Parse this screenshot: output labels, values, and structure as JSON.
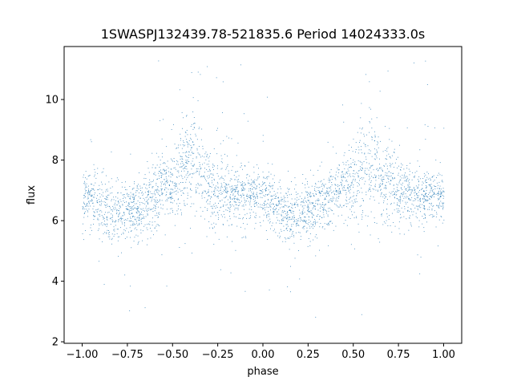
{
  "chart_data": {
    "type": "scatter",
    "title": "1SWASPJ132439.78-521835.6 Period 14024333.0s",
    "xlabel": "phase",
    "ylabel": "flux",
    "xlim": [
      -1.1,
      1.1
    ],
    "ylim": [
      1.95,
      11.75
    ],
    "x_ticks": [
      -1.0,
      -0.75,
      -0.5,
      -0.25,
      0.0,
      0.25,
      0.5,
      0.75,
      1.0
    ],
    "x_tick_labels": [
      "−1.00",
      "−0.75",
      "−0.50",
      "−0.25",
      "0.00",
      "0.25",
      "0.50",
      "0.75",
      "1.00"
    ],
    "y_ticks": [
      2,
      4,
      6,
      8,
      10
    ],
    "y_tick_labels": [
      "2",
      "4",
      "6",
      "8",
      "10"
    ],
    "grid": false,
    "marker_color": "#1f77b4",
    "series": [
      {
        "profile_phase": [
          -1.0,
          -0.95,
          -0.9,
          -0.85,
          -0.8,
          -0.75,
          -0.7,
          -0.65,
          -0.6,
          -0.55,
          -0.5,
          -0.45,
          -0.4,
          -0.35,
          -0.3,
          -0.25,
          -0.2,
          -0.15,
          -0.1,
          -0.05,
          0.0,
          0.05,
          0.1,
          0.15,
          0.2,
          0.25,
          0.3,
          0.35,
          0.4,
          0.45,
          0.5,
          0.55,
          0.6,
          0.65,
          0.7,
          0.75,
          0.8,
          0.85,
          0.9,
          0.95,
          1.0
        ],
        "profile_flux": [
          6.8,
          6.7,
          6.5,
          6.3,
          6.2,
          6.3,
          6.3,
          6.6,
          6.9,
          7.2,
          7.3,
          7.7,
          8.0,
          7.6,
          7.2,
          7.0,
          6.9,
          6.8,
          6.9,
          6.9,
          6.8,
          6.6,
          6.4,
          6.2,
          6.2,
          6.3,
          6.4,
          6.6,
          6.9,
          7.2,
          7.3,
          7.7,
          8.0,
          7.6,
          7.2,
          7.0,
          6.9,
          6.8,
          6.9,
          6.9,
          6.8
        ],
        "profile_spread": [
          0.5,
          0.5,
          0.55,
          0.6,
          0.6,
          0.6,
          0.6,
          0.6,
          0.65,
          0.7,
          0.75,
          0.9,
          1.0,
          0.9,
          0.8,
          0.7,
          0.6,
          0.55,
          0.55,
          0.5,
          0.5,
          0.5,
          0.55,
          0.6,
          0.6,
          0.6,
          0.6,
          0.6,
          0.65,
          0.7,
          0.75,
          0.9,
          1.0,
          0.9,
          0.8,
          0.7,
          0.6,
          0.55,
          0.55,
          0.5,
          0.5
        ]
      }
    ]
  }
}
